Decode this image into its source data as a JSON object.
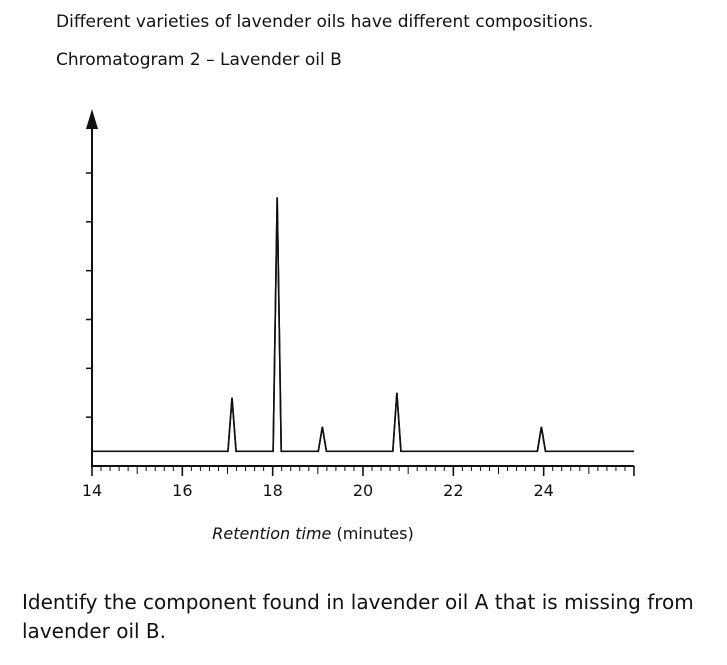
{
  "intro_text": "Different varieties of lavender oils have different compositions.",
  "chart_title": "Chromatogram 2 – Lavender oil B",
  "question": "Identify the component found in lavender oil A that is missing from lavender oil B.",
  "chart_data": {
    "type": "line",
    "title": "Chromatogram 2 – Lavender oil B",
    "xlabel_italic": "Retention time",
    "xlabel_unit": "(minutes)",
    "ylabel": "",
    "xlim": [
      14,
      26
    ],
    "x_ticks": [
      14,
      16,
      18,
      20,
      22,
      24
    ],
    "ylim": [
      0,
      6
    ],
    "y_ticks": [
      1,
      2,
      3,
      4,
      5,
      6
    ],
    "baseline": 0.3,
    "peaks": [
      {
        "x": 17.1,
        "y": 1.4
      },
      {
        "x": 18.1,
        "y": 5.5
      },
      {
        "x": 19.1,
        "y": 0.8
      },
      {
        "x": 20.75,
        "y": 1.5
      },
      {
        "x": 23.95,
        "y": 0.8
      }
    ],
    "colors": {
      "axis": "#111111",
      "trace": "#111111"
    }
  }
}
